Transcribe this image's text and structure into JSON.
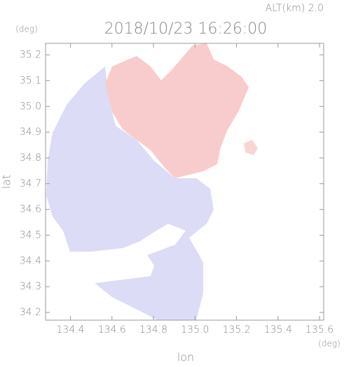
{
  "chart_data": {
    "type": "map",
    "title": "2018/10/23 16:26:00",
    "subtitle": "ALT(km) 2.0",
    "x_label": "lon",
    "y_label": "lat",
    "x_unit": "(deg)",
    "y_unit": "(deg)",
    "xlim": [
      134.28,
      135.62
    ],
    "ylim": [
      34.17,
      35.245
    ],
    "xticks": [
      134.4,
      134.6,
      134.8,
      {
        "value": 135,
        "label": "135.0"
      },
      135.2,
      135.4,
      135.6
    ],
    "yticks": [
      34.2,
      34.3,
      34.4,
      34.5,
      34.6,
      34.7,
      34.8,
      34.9,
      {
        "value": 35,
        "label": "35.0"
      },
      35.1,
      35.2
    ]
  }
}
